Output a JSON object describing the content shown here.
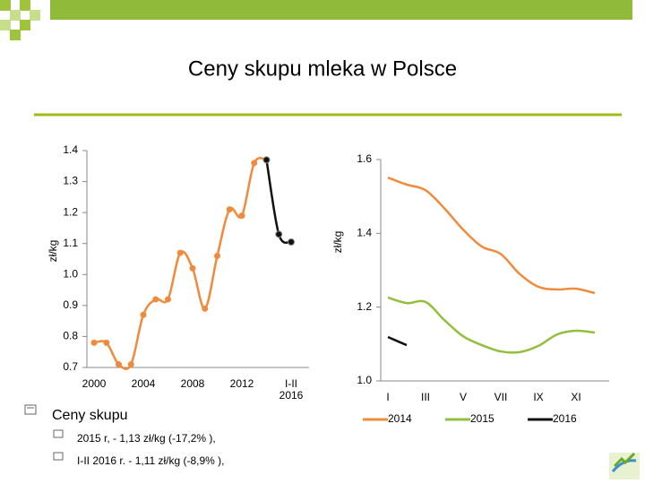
{
  "title": "Ceny skupu mleka w Polsce",
  "bullets": {
    "main": "Ceny skupu",
    "items": [
      "2015 r, - 1,13 zł/kg (-17,2% ),",
      "I-II 2016 r.  - 1,11  zł/kg (-8,9% ),"
    ]
  },
  "chart_data": [
    {
      "type": "line",
      "y_label": "zł/kg",
      "categories": [
        "2000",
        null,
        null,
        null,
        "2004",
        null,
        null,
        null,
        "2008",
        null,
        null,
        null,
        "2012",
        null,
        null,
        null,
        "I-II 2016"
      ],
      "series": [
        {
          "name": null,
          "color": "#f08a3c",
          "marker": "circle",
          "values": [
            0.78,
            0.78,
            0.71,
            0.71,
            0.87,
            0.92,
            0.92,
            1.07,
            1.02,
            0.89,
            1.06,
            1.21,
            1.19,
            1.36,
            1.37,
            null,
            null
          ]
        },
        {
          "name": null,
          "color": "#111111",
          "marker": "circle",
          "values": [
            null,
            null,
            null,
            null,
            null,
            null,
            null,
            null,
            null,
            null,
            null,
            null,
            null,
            null,
            1.37,
            1.13,
            1.105
          ]
        }
      ],
      "ylim": [
        0.7,
        1.4
      ],
      "yticks": [
        0.7,
        0.8,
        0.9,
        {
          "value": 1.0,
          "label": "1.0"
        },
        1.1,
        1.2,
        1.3,
        1.4
      ]
    },
    {
      "type": "line",
      "y_label": "zł/kg",
      "categories": [
        "I",
        null,
        "III",
        null,
        "V",
        null,
        "VII",
        null,
        "IX",
        null,
        "XI",
        null
      ],
      "series": [
        {
          "name": "2014",
          "color": "#f08a3c",
          "values": [
            1.551,
            1.532,
            1.517,
            1.468,
            1.41,
            1.364,
            1.344,
            1.29,
            1.255,
            1.248,
            1.25,
            1.238
          ]
        },
        {
          "name": "2015",
          "color": "#92bf3c",
          "values": [
            1.226,
            1.211,
            1.214,
            1.165,
            1.121,
            1.097,
            1.08,
            1.078,
            1.095,
            1.126,
            1.136,
            1.131
          ]
        },
        {
          "name": "2016",
          "color": "#111111",
          "values": [
            1.119,
            1.097,
            null,
            null,
            null,
            null,
            null,
            null,
            null,
            null,
            null,
            null
          ]
        }
      ],
      "ylim": [
        1.0,
        1.6
      ],
      "yticks": [
        {
          "value": 1.0,
          "label": "1.0"
        },
        1.2,
        1.4,
        1.6
      ],
      "legend": "bottom"
    }
  ]
}
